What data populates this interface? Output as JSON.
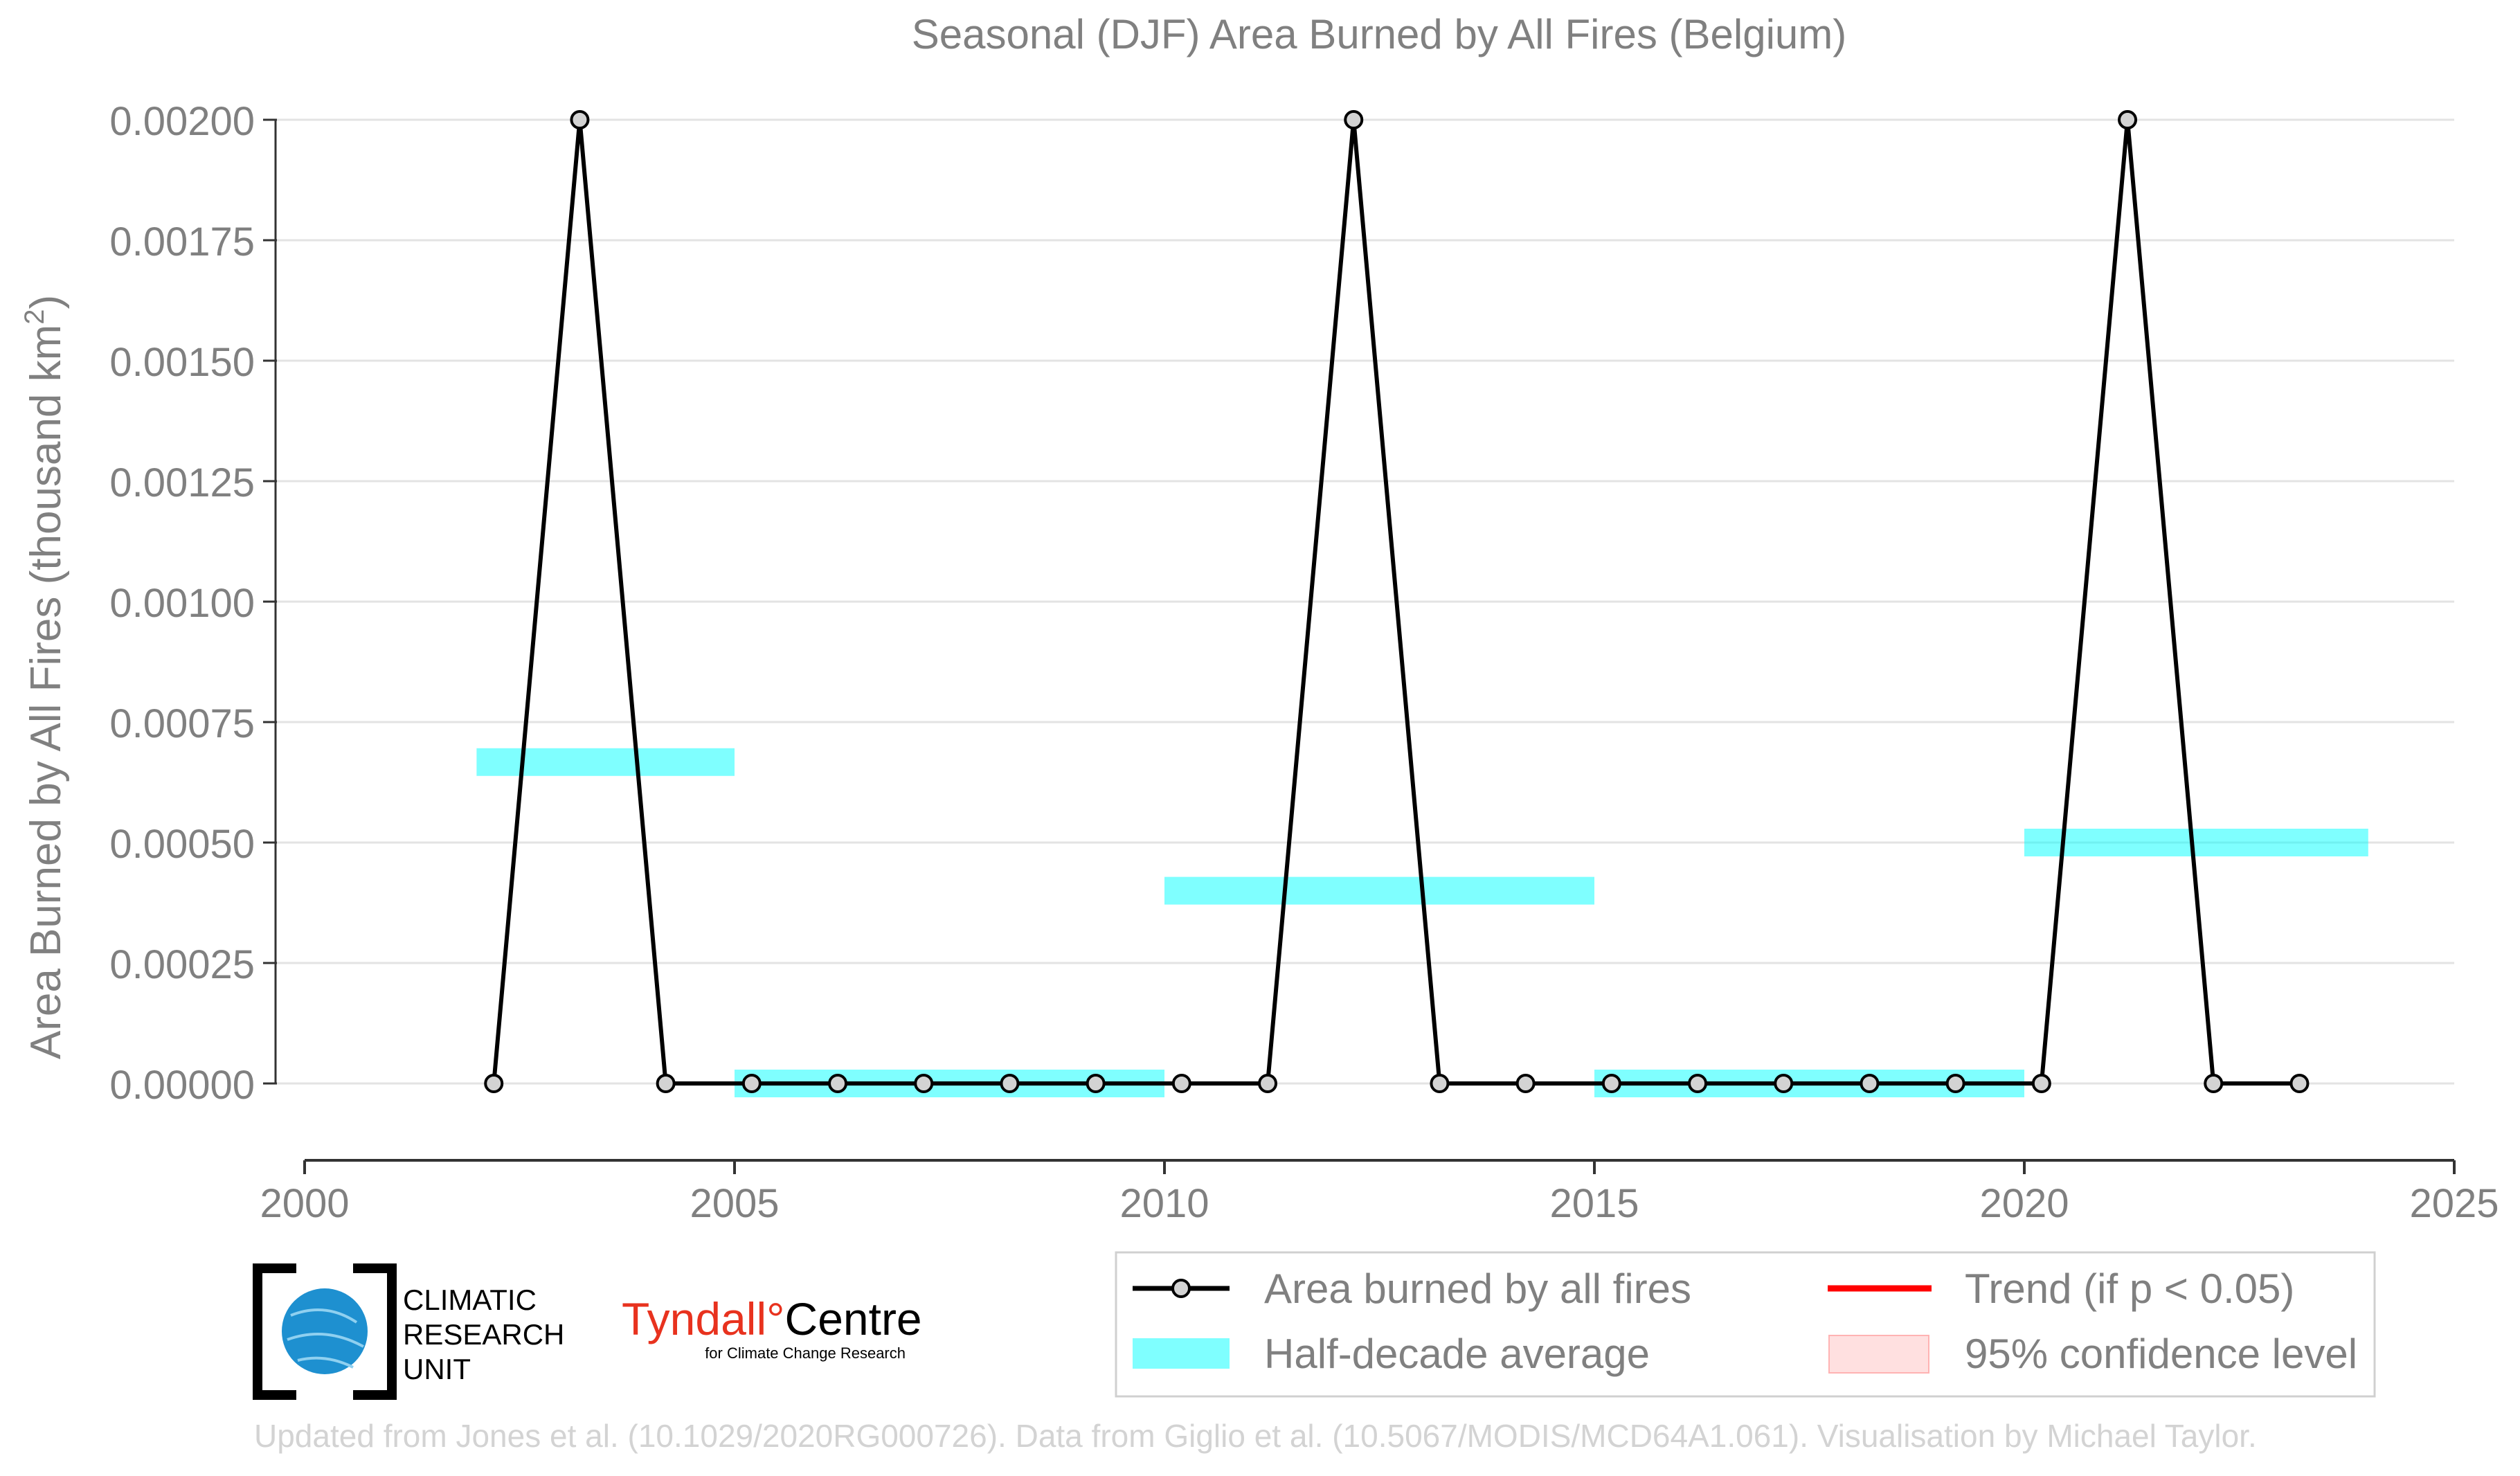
{
  "chart_data": {
    "type": "line",
    "title": "Seasonal (DJF) Area Burned by All Fires (Belgium)",
    "ylabel": "Area Burned by All Fires (thousand km²)",
    "ylabel_main": "Area Burned by All Fires (thousand km",
    "ylabel_sup": "2",
    "ylabel_end": ")",
    "xlabel": "",
    "xlim": [
      2000,
      2025
    ],
    "ylim": [
      -0.00015,
      0.0021
    ],
    "xticks": [
      2000,
      2005,
      2010,
      2015,
      2020,
      2025
    ],
    "yticks": [
      0.0,
      0.00025,
      0.0005,
      0.00075,
      0.001,
      0.00125,
      0.0015,
      0.00175,
      0.002
    ],
    "ytick_labels": [
      "0.00000",
      "0.00025",
      "0.00050",
      "0.00075",
      "0.00100",
      "0.00125",
      "0.00150",
      "0.00175",
      "0.00200"
    ],
    "grid": "horizontal",
    "series": [
      {
        "name": "Area burned by all fires",
        "color": "#000000",
        "marker_fill": "#d3d3d3",
        "x": [
          2002.2,
          2003.2,
          2004.2,
          2005.2,
          2006.2,
          2007.2,
          2008.2,
          2009.2,
          2010.2,
          2011.2,
          2012.2,
          2013.2,
          2014.2,
          2015.2,
          2016.2,
          2017.2,
          2018.2,
          2019.2,
          2020.2,
          2021.2,
          2022.2,
          2023.2
        ],
        "y": [
          0,
          0.002,
          0,
          0,
          0,
          0,
          0,
          0,
          0,
          0,
          0.002,
          0,
          0,
          0,
          0,
          0,
          0,
          0,
          0,
          0.002,
          0,
          0
        ]
      }
    ],
    "half_decade_averages": {
      "name": "Half-decade average",
      "color": "#00ffff",
      "segments": [
        {
          "x0": 2002,
          "x1": 2005,
          "y": 0.000667
        },
        {
          "x0": 2005,
          "x1": 2010,
          "y": 0.0
        },
        {
          "x0": 2010,
          "x1": 2015,
          "y": 0.0004
        },
        {
          "x0": 2015,
          "x1": 2020,
          "y": 0.0
        },
        {
          "x0": 2020,
          "x1": 2024,
          "y": 0.0005
        }
      ]
    },
    "legend": {
      "placement": "bottom-right",
      "items": [
        {
          "label": "Area burned by all fires",
          "kind": "line-marker",
          "color": "#000000"
        },
        {
          "label": "Trend (if p < 0.05)",
          "kind": "line",
          "color": "#ff0000"
        },
        {
          "label": "Half-decade average",
          "kind": "band",
          "color": "#00ffff"
        },
        {
          "label": "95% confidence level",
          "kind": "box",
          "color": "#ffcccc"
        }
      ]
    }
  },
  "logos": {
    "cru": {
      "line1": "CLIMATIC",
      "line2": "RESEARCH",
      "line3": "UNIT",
      "globe_color": "#1e90d0"
    },
    "tyndall": {
      "name": "Tyndall",
      "degree": "°",
      "centre": "Centre",
      "tagline": "for Climate Change Research",
      "brand_color": "#e8321e"
    }
  },
  "footer": {
    "credit": "Updated from Jones et al. (10.1029/2020RG000726). Data from Giglio et al. (10.5067/MODIS/MCD64A1.061). Visualisation by Michael Taylor."
  },
  "colors": {
    "axis_text": "#808080",
    "grid": "#e3e3e3",
    "axis_line": "#333333",
    "footer_text": "#d3d3d3"
  }
}
